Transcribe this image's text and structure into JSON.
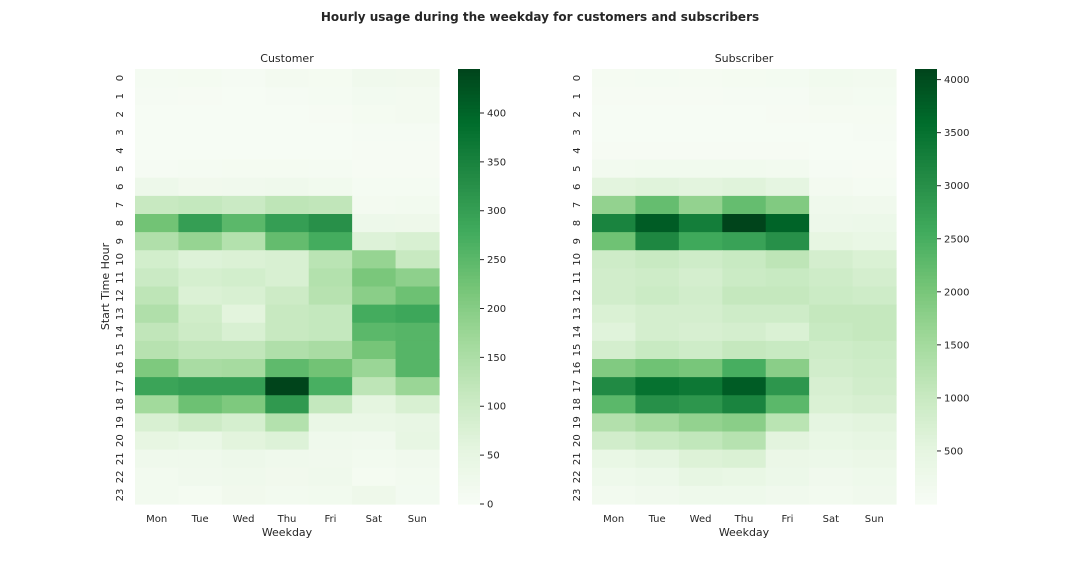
{
  "title": "Hourly usage during the weekday for customers and subscribers",
  "colormap": [
    "#f7fcf5",
    "#e5f5e0",
    "#c7e9c0",
    "#a1d99b",
    "#74c476",
    "#41ab5d",
    "#238b45",
    "#006d2c",
    "#00441b"
  ],
  "chart_data": [
    {
      "type": "heatmap",
      "title": "Customer",
      "xlabel": "Weekday",
      "ylabel": "Start Time Hour",
      "x": [
        "Mon",
        "Tue",
        "Wed",
        "Thu",
        "Fri",
        "Sat",
        "Sun"
      ],
      "y": [
        "0",
        "1",
        "2",
        "3",
        "4",
        "5",
        "6",
        "7",
        "8",
        "9",
        "10",
        "11",
        "12",
        "13",
        "14",
        "15",
        "16",
        "17",
        "18",
        "19",
        "20",
        "21",
        "22",
        "23"
      ],
      "vmin": 0,
      "vmax": 445,
      "colorbar_ticks": [
        0,
        50,
        100,
        150,
        200,
        250,
        300,
        350,
        400
      ],
      "values": [
        [
          8,
          10,
          5,
          12,
          10,
          22,
          20
        ],
        [
          5,
          4,
          3,
          6,
          8,
          14,
          12
        ],
        [
          3,
          2,
          2,
          3,
          4,
          10,
          12
        ],
        [
          2,
          2,
          2,
          2,
          2,
          5,
          6
        ],
        [
          3,
          2,
          2,
          3,
          3,
          4,
          4
        ],
        [
          6,
          8,
          10,
          10,
          8,
          4,
          4
        ],
        [
          30,
          20,
          22,
          25,
          18,
          8,
          8
        ],
        [
          110,
          115,
          105,
          125,
          120,
          12,
          16
        ],
        [
          225,
          300,
          250,
          300,
          325,
          30,
          28
        ],
        [
          145,
          180,
          140,
          240,
          275,
          70,
          80
        ],
        [
          90,
          70,
          75,
          80,
          130,
          180,
          110
        ],
        [
          105,
          85,
          90,
          80,
          140,
          215,
          190
        ],
        [
          125,
          75,
          80,
          100,
          135,
          195,
          230
        ],
        [
          145,
          95,
          60,
          110,
          115,
          275,
          285
        ],
        [
          120,
          100,
          80,
          110,
          115,
          250,
          255
        ],
        [
          135,
          120,
          120,
          145,
          155,
          220,
          255
        ],
        [
          210,
          155,
          160,
          245,
          225,
          175,
          255
        ],
        [
          290,
          300,
          300,
          445,
          270,
          125,
          175
        ],
        [
          165,
          230,
          210,
          310,
          115,
          55,
          80
        ],
        [
          80,
          100,
          85,
          140,
          40,
          40,
          45
        ],
        [
          50,
          40,
          60,
          70,
          25,
          22,
          48
        ],
        [
          25,
          25,
          30,
          25,
          22,
          15,
          22
        ],
        [
          15,
          22,
          25,
          20,
          25,
          10,
          15
        ],
        [
          15,
          10,
          20,
          15,
          18,
          28,
          14
        ]
      ]
    },
    {
      "type": "heatmap",
      "title": "Subscriber",
      "xlabel": "Weekday",
      "ylabel": "",
      "x": [
        "Mon",
        "Tue",
        "Wed",
        "Thu",
        "Fri",
        "Sat",
        "Sun"
      ],
      "y": [
        "0",
        "1",
        "2",
        "3",
        "4",
        "5",
        "6",
        "7",
        "8",
        "9",
        "10",
        "11",
        "12",
        "13",
        "14",
        "15",
        "16",
        "17",
        "18",
        "19",
        "20",
        "21",
        "22",
        "23"
      ],
      "vmin": 0,
      "vmax": 4100,
      "colorbar_ticks": [
        500,
        1000,
        1500,
        2000,
        2500,
        3000,
        3500,
        4000
      ],
      "values": [
        [
          70,
          80,
          70,
          90,
          100,
          180,
          150
        ],
        [
          40,
          40,
          40,
          50,
          60,
          110,
          100
        ],
        [
          30,
          25,
          25,
          30,
          40,
          70,
          70
        ],
        [
          20,
          20,
          20,
          20,
          20,
          30,
          50
        ],
        [
          40,
          40,
          40,
          40,
          40,
          30,
          30
        ],
        [
          150,
          170,
          160,
          170,
          140,
          50,
          40
        ],
        [
          550,
          600,
          550,
          600,
          500,
          110,
          80
        ],
        [
          1700,
          2200,
          1700,
          2200,
          1900,
          220,
          200
        ],
        [
          3200,
          3800,
          3300,
          4100,
          3700,
          280,
          300
        ],
        [
          2100,
          3150,
          2600,
          2700,
          3000,
          460,
          400
        ],
        [
          900,
          1000,
          900,
          1000,
          1150,
          800,
          700
        ],
        [
          850,
          900,
          800,
          950,
          1000,
          900,
          800
        ],
        [
          850,
          950,
          850,
          1050,
          1050,
          950,
          900
        ],
        [
          700,
          800,
          800,
          900,
          900,
          1050,
          1050
        ],
        [
          600,
          800,
          750,
          800,
          700,
          1000,
          1050
        ],
        [
          800,
          1000,
          900,
          1050,
          1000,
          900,
          950
        ],
        [
          1900,
          2100,
          2000,
          2500,
          1800,
          850,
          900
        ],
        [
          3100,
          3500,
          3400,
          3800,
          2900,
          750,
          850
        ],
        [
          2300,
          3000,
          2900,
          3200,
          2300,
          700,
          750
        ],
        [
          1300,
          1500,
          1700,
          1800,
          1200,
          500,
          550
        ],
        [
          850,
          1000,
          1100,
          1250,
          550,
          400,
          450
        ],
        [
          400,
          500,
          650,
          700,
          350,
          300,
          350
        ],
        [
          250,
          300,
          450,
          400,
          300,
          200,
          250
        ],
        [
          150,
          200,
          250,
          250,
          200,
          150,
          200
        ]
      ]
    }
  ]
}
